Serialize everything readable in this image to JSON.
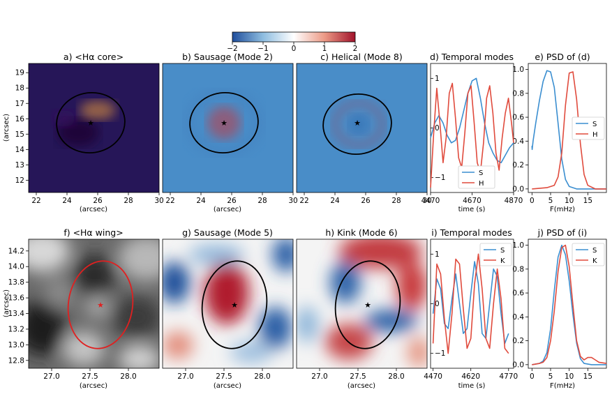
{
  "colorbar": {
    "ticks": [
      "−2",
      "−1",
      "0",
      "1",
      "2"
    ],
    "colors": [
      "#1f4e9c",
      "#ffffff",
      "#a1122a"
    ]
  },
  "chart_data": [
    {
      "id": "a",
      "type": "heatmap",
      "title": "a) <Hα core>",
      "colormap": "inferno",
      "xlabel": "(arcsec)",
      "ylabel": "(arcsec)",
      "xticks": [
        "22",
        "24",
        "26",
        "28",
        "30"
      ],
      "yticks": [
        "12",
        "13",
        "14",
        "15",
        "16",
        "17",
        "18",
        "19"
      ],
      "xlim": [
        21.5,
        30
      ],
      "ylim": [
        11.2,
        19.6
      ],
      "ellipse": {
        "center": [
          25.6,
          15.8
        ],
        "semi_axes": [
          2.4,
          2.0
        ],
        "color": "black"
      },
      "marker": {
        "x": 25.6,
        "y": 15.8,
        "symbol": "star",
        "color": "black"
      }
    },
    {
      "id": "b",
      "type": "heatmap",
      "title": "b) Sausage (Mode 2)",
      "colormap": "RdBu_r",
      "xlabel": "(arcsec)",
      "xticks": [
        "22",
        "24",
        "26",
        "28",
        "30"
      ],
      "xlim": [
        21.5,
        30
      ],
      "ellipse": {
        "center": [
          25.6,
          15.8
        ],
        "semi_axes": [
          2.4,
          2.0
        ],
        "color": "black"
      },
      "marker": {
        "x": 25.6,
        "y": 15.8,
        "symbol": "star",
        "color": "black"
      }
    },
    {
      "id": "c",
      "type": "heatmap",
      "title": "c) Helical (Mode 8)",
      "colormap": "RdBu_r",
      "xlabel": "",
      "xticks": [
        "22",
        "24",
        "26",
        "28",
        "30"
      ],
      "xlim": [
        21.5,
        30
      ],
      "ellipse": {
        "center": [
          25.6,
          15.8
        ],
        "semi_axes": [
          2.4,
          2.0
        ],
        "color": "black"
      },
      "marker": {
        "x": 25.6,
        "y": 15.8,
        "symbol": "star",
        "color": "black"
      }
    },
    {
      "id": "d",
      "type": "line",
      "title": "d) Temporal modes",
      "xlabel": "time (s)",
      "xticks": [
        "4470",
        "4670",
        "4870"
      ],
      "xlim": [
        4470,
        4870
      ],
      "yticks": [
        "1",
        "0",
        "−1"
      ],
      "ylim": [
        -1.3,
        1.3
      ],
      "series": [
        {
          "name": "S",
          "color": "#3a8ed0",
          "x": [
            4470,
            4490,
            4510,
            4530,
            4550,
            4570,
            4590,
            4610,
            4630,
            4650,
            4670,
            4690,
            4710,
            4730,
            4750,
            4770,
            4790,
            4810,
            4830,
            4850,
            4870
          ],
          "y": [
            -0.2,
            0.1,
            0.25,
            0.1,
            -0.15,
            -0.3,
            -0.25,
            0.0,
            0.35,
            0.7,
            0.95,
            1.0,
            0.6,
            0.1,
            -0.3,
            -0.5,
            -0.65,
            -0.7,
            -0.55,
            -0.4,
            -0.3
          ]
        },
        {
          "name": "H",
          "color": "#e04a3c",
          "x": [
            4470,
            4485,
            4500,
            4515,
            4530,
            4545,
            4560,
            4575,
            4590,
            4605,
            4620,
            4635,
            4650,
            4665,
            4680,
            4695,
            4710,
            4725,
            4740,
            4755,
            4770,
            4785,
            4800,
            4815,
            4830,
            4845,
            4860,
            4870
          ],
          "y": [
            -1.2,
            -0.1,
            0.8,
            0.1,
            -0.7,
            -0.2,
            0.7,
            0.9,
            0.2,
            -0.6,
            -0.8,
            -0.1,
            0.7,
            0.85,
            0.1,
            -0.7,
            -0.9,
            -0.3,
            0.6,
            0.85,
            0.3,
            -0.5,
            -0.85,
            -0.2,
            0.3,
            0.6,
            0.1,
            -0.3
          ]
        }
      ],
      "legend": "lower-center"
    },
    {
      "id": "e",
      "type": "line",
      "title": "e) PSD of (d)",
      "xlabel": "F(mHz)",
      "xticks": [
        "0",
        "5",
        "10",
        "15"
      ],
      "xlim": [
        -1,
        20
      ],
      "yticks": [
        "0.0",
        "0.2",
        "0.4",
        "0.6",
        "0.8",
        "1.0"
      ],
      "ylim": [
        -0.03,
        1.05
      ],
      "series": [
        {
          "name": "S",
          "color": "#3a8ed0",
          "x": [
            0,
            0.05,
            0.3,
            1,
            2,
            3,
            4,
            5,
            6,
            7,
            8,
            9,
            10,
            12,
            15,
            20
          ],
          "y": [
            0.36,
            0.33,
            0.4,
            0.55,
            0.74,
            0.9,
            0.99,
            0.98,
            0.85,
            0.55,
            0.25,
            0.08,
            0.02,
            0.0,
            0.0,
            0.0
          ]
        },
        {
          "name": "H",
          "color": "#e04a3c",
          "x": [
            0,
            4,
            6,
            7,
            8,
            9,
            10,
            11,
            12,
            13,
            14,
            15,
            17,
            20
          ],
          "y": [
            0.0,
            0.01,
            0.03,
            0.1,
            0.3,
            0.7,
            0.97,
            0.98,
            0.75,
            0.38,
            0.12,
            0.03,
            0.0,
            0.0
          ]
        }
      ],
      "legend": "center-right"
    },
    {
      "id": "f",
      "type": "heatmap",
      "title": "f) <Hα wing>",
      "colormap": "gray",
      "xlabel": "(arcsec)",
      "ylabel": "(arcsec)",
      "xticks": [
        "27.0",
        "27.5",
        "28.0"
      ],
      "yticks": [
        "12.8",
        "13.0",
        "13.2",
        "13.4",
        "13.6",
        "13.8",
        "14.0",
        "14.2"
      ],
      "xlim": [
        26.7,
        28.4
      ],
      "ylim": [
        12.7,
        14.35
      ],
      "ellipse": {
        "center": [
          27.64,
          13.52
        ],
        "semi_axes": [
          0.44,
          0.6
        ],
        "color": "red"
      },
      "marker": {
        "x": 27.64,
        "y": 13.52,
        "symbol": "star",
        "color": "red"
      }
    },
    {
      "id": "g",
      "type": "heatmap",
      "title": "g) Sausage (Mode 5)",
      "colormap": "RdBu_r",
      "xlabel": "(arcsec)",
      "xticks": [
        "27.0",
        "27.5",
        "28.0"
      ],
      "xlim": [
        26.7,
        28.4
      ],
      "ellipse": {
        "center": [
          27.64,
          13.52
        ],
        "semi_axes": [
          0.44,
          0.6
        ],
        "color": "black"
      },
      "marker": {
        "x": 27.64,
        "y": 13.52,
        "symbol": "star",
        "color": "black"
      }
    },
    {
      "id": "h",
      "type": "heatmap",
      "title": "h) Kink (Mode 6)",
      "colormap": "RdBu_r",
      "xlabel": "(arcsec)",
      "xticks": [
        "27.0",
        "27.5",
        "28.0"
      ],
      "xlim": [
        26.7,
        28.4
      ],
      "ellipse": {
        "center": [
          27.64,
          13.52
        ],
        "semi_axes": [
          0.44,
          0.6
        ],
        "color": "black"
      },
      "marker": {
        "x": 27.64,
        "y": 13.52,
        "symbol": "star",
        "color": "black"
      }
    },
    {
      "id": "i",
      "type": "line",
      "title": "i) Temporal modes",
      "xlabel": "time (s)",
      "xticks": [
        "4470",
        "4620",
        "4770"
      ],
      "xlim": [
        4460,
        4790
      ],
      "yticks": [
        "1",
        "0",
        "−1"
      ],
      "ylim": [
        -1.3,
        1.3
      ],
      "series": [
        {
          "name": "S",
          "color": "#3a8ed0",
          "x": [
            4470,
            4485,
            4500,
            4515,
            4530,
            4545,
            4560,
            4575,
            4590,
            4605,
            4620,
            4635,
            4650,
            4665,
            4680,
            4695,
            4710,
            4725,
            4740,
            4755,
            4770
          ],
          "y": [
            -0.2,
            0.5,
            0.3,
            -0.4,
            -0.5,
            0.1,
            0.6,
            0.0,
            -0.6,
            -0.5,
            0.2,
            0.85,
            0.4,
            -0.6,
            -0.7,
            0.0,
            0.7,
            0.55,
            -0.2,
            -0.8,
            -0.6
          ]
        },
        {
          "name": "K",
          "color": "#e04a3c",
          "x": [
            4470,
            4485,
            4500,
            4515,
            4530,
            4545,
            4560,
            4575,
            4590,
            4605,
            4620,
            4635,
            4650,
            4665,
            4680,
            4695,
            4710,
            4725,
            4740,
            4755,
            4770
          ],
          "y": [
            -0.8,
            0.8,
            0.6,
            -0.3,
            -1.0,
            -0.2,
            0.9,
            0.8,
            -0.1,
            -0.9,
            -0.7,
            0.4,
            1.0,
            0.3,
            -0.7,
            -0.9,
            0.0,
            0.7,
            0.1,
            -0.9,
            -1.0
          ]
        }
      ],
      "legend": "top-right"
    },
    {
      "id": "j",
      "type": "line",
      "title": "j) PSD of (i)",
      "xlabel": "F(mHz)",
      "xticks": [
        "0",
        "5",
        "10",
        "15"
      ],
      "xlim": [
        -1,
        20
      ],
      "yticks": [
        "0.0",
        "0.2",
        "0.4",
        "0.6",
        "0.8",
        "1.0"
      ],
      "ylim": [
        -0.03,
        1.05
      ],
      "series": [
        {
          "name": "S",
          "color": "#3a8ed0",
          "x": [
            0,
            2,
            3,
            4,
            5,
            6,
            7,
            8,
            9,
            10,
            11,
            12,
            13,
            14,
            16,
            20
          ],
          "y": [
            0.0,
            0.01,
            0.03,
            0.1,
            0.3,
            0.62,
            0.9,
            1.0,
            0.92,
            0.7,
            0.42,
            0.18,
            0.05,
            0.01,
            0.0,
            0.0
          ]
        },
        {
          "name": "K",
          "color": "#e04a3c",
          "x": [
            0,
            2,
            3,
            4,
            5,
            6,
            7,
            8,
            9,
            10,
            11,
            12,
            13,
            14,
            15,
            16,
            17,
            18,
            20
          ],
          "y": [
            0.0,
            0.01,
            0.02,
            0.06,
            0.2,
            0.45,
            0.78,
            0.98,
            1.0,
            0.82,
            0.5,
            0.2,
            0.07,
            0.04,
            0.06,
            0.06,
            0.04,
            0.02,
            0.01
          ]
        }
      ],
      "legend": "top-right"
    }
  ]
}
